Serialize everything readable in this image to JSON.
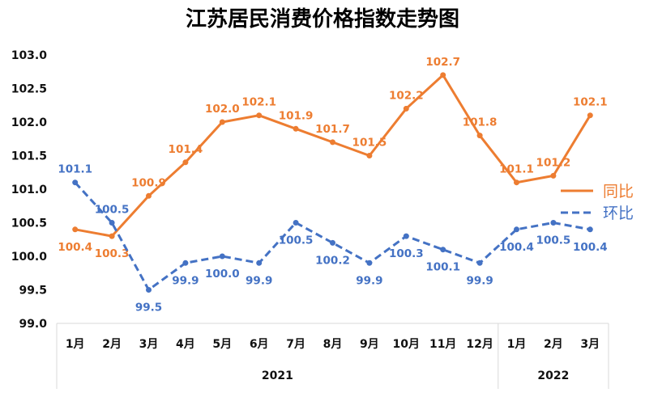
{
  "chart_data": {
    "type": "line",
    "title": "江苏居民消费价格指数走势图",
    "categories": [
      "1月",
      "2月",
      "3月",
      "4月",
      "5月",
      "6月",
      "7月",
      "8月",
      "9月",
      "10月",
      "11月",
      "12月",
      "1月",
      "2月",
      "3月"
    ],
    "groups": [
      {
        "label": "2021",
        "count": 12
      },
      {
        "label": "2022",
        "count": 3
      }
    ],
    "ylim": [
      99.0,
      103.0
    ],
    "yticks": [
      "103.0",
      "102.5",
      "102.0",
      "101.5",
      "101.0",
      "100.5",
      "100.0",
      "99.5",
      "99.0"
    ],
    "grid": false,
    "legend_position": "right",
    "series": [
      {
        "name": "同比",
        "color": "#ED7D31",
        "style": "solid",
        "values": [
          100.4,
          100.3,
          100.9,
          101.4,
          102.0,
          102.1,
          101.9,
          101.7,
          101.5,
          102.2,
          102.7,
          101.8,
          101.1,
          101.2,
          102.1
        ],
        "labels": [
          "100.4",
          "100.3",
          "100.9",
          "101.4",
          "102.0",
          "102.1",
          "101.9",
          "101.7",
          "101.5",
          "102.2",
          "102.7",
          "101.8",
          "101.1",
          "101.2",
          "102.1"
        ]
      },
      {
        "name": "环比",
        "color": "#4472C4",
        "style": "dashed",
        "values": [
          101.1,
          100.5,
          99.5,
          99.9,
          100.0,
          99.9,
          100.5,
          100.2,
          99.9,
          100.3,
          100.1,
          99.9,
          100.4,
          100.5,
          100.4
        ],
        "labels": [
          "101.1",
          "100.5",
          "99.5",
          "99.9",
          "100.0",
          "99.9",
          "100.5",
          "100.2",
          "99.9",
          "100.3",
          "100.1",
          "99.9",
          "100.4",
          "100.5",
          "100.4"
        ]
      }
    ]
  }
}
